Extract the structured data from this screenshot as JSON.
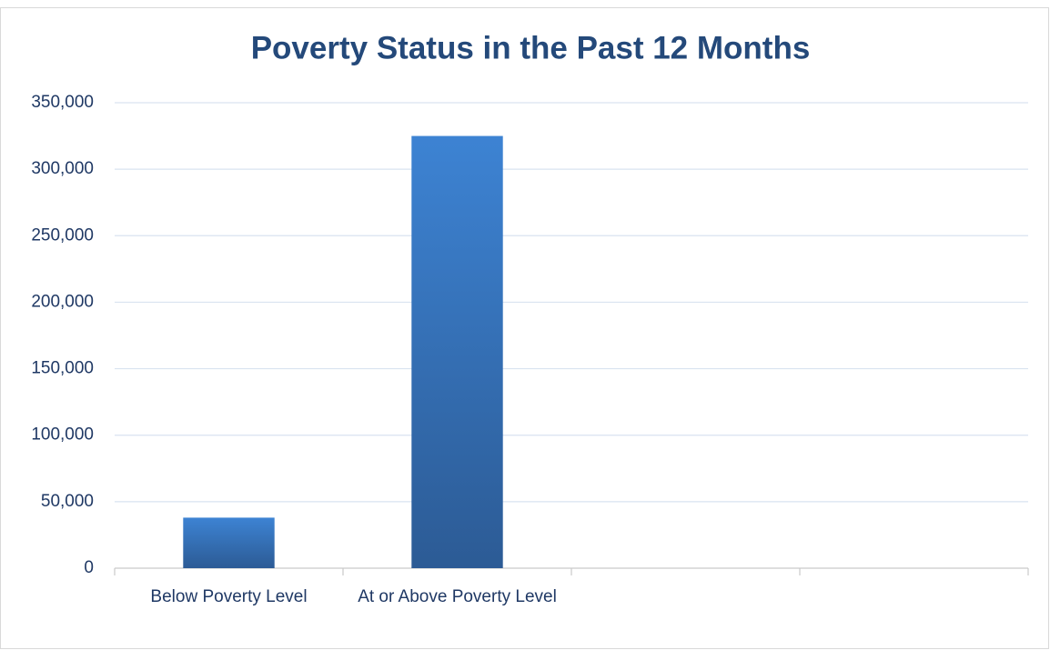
{
  "chart_data": {
    "type": "bar",
    "title": "Poverty Status in the Past 12 Months",
    "categories": [
      "Below Poverty Level",
      "At or Above Poverty Level",
      null,
      null
    ],
    "values": [
      38000,
      325000,
      null,
      null
    ],
    "color": "#3a7fcf",
    "ylim": [
      0,
      350000
    ],
    "yticks": [
      0,
      {
        "value": 50000,
        "label": "50,000"
      },
      {
        "value": 100000,
        "label": "100,000"
      },
      {
        "value": 150000,
        "label": "150,000"
      },
      {
        "value": 200000,
        "label": "200,000"
      },
      {
        "value": 250000,
        "label": "250,000"
      },
      {
        "value": 300000,
        "label": "300,000"
      },
      {
        "value": 350000,
        "label": "350,000"
      }
    ],
    "grid": true
  }
}
